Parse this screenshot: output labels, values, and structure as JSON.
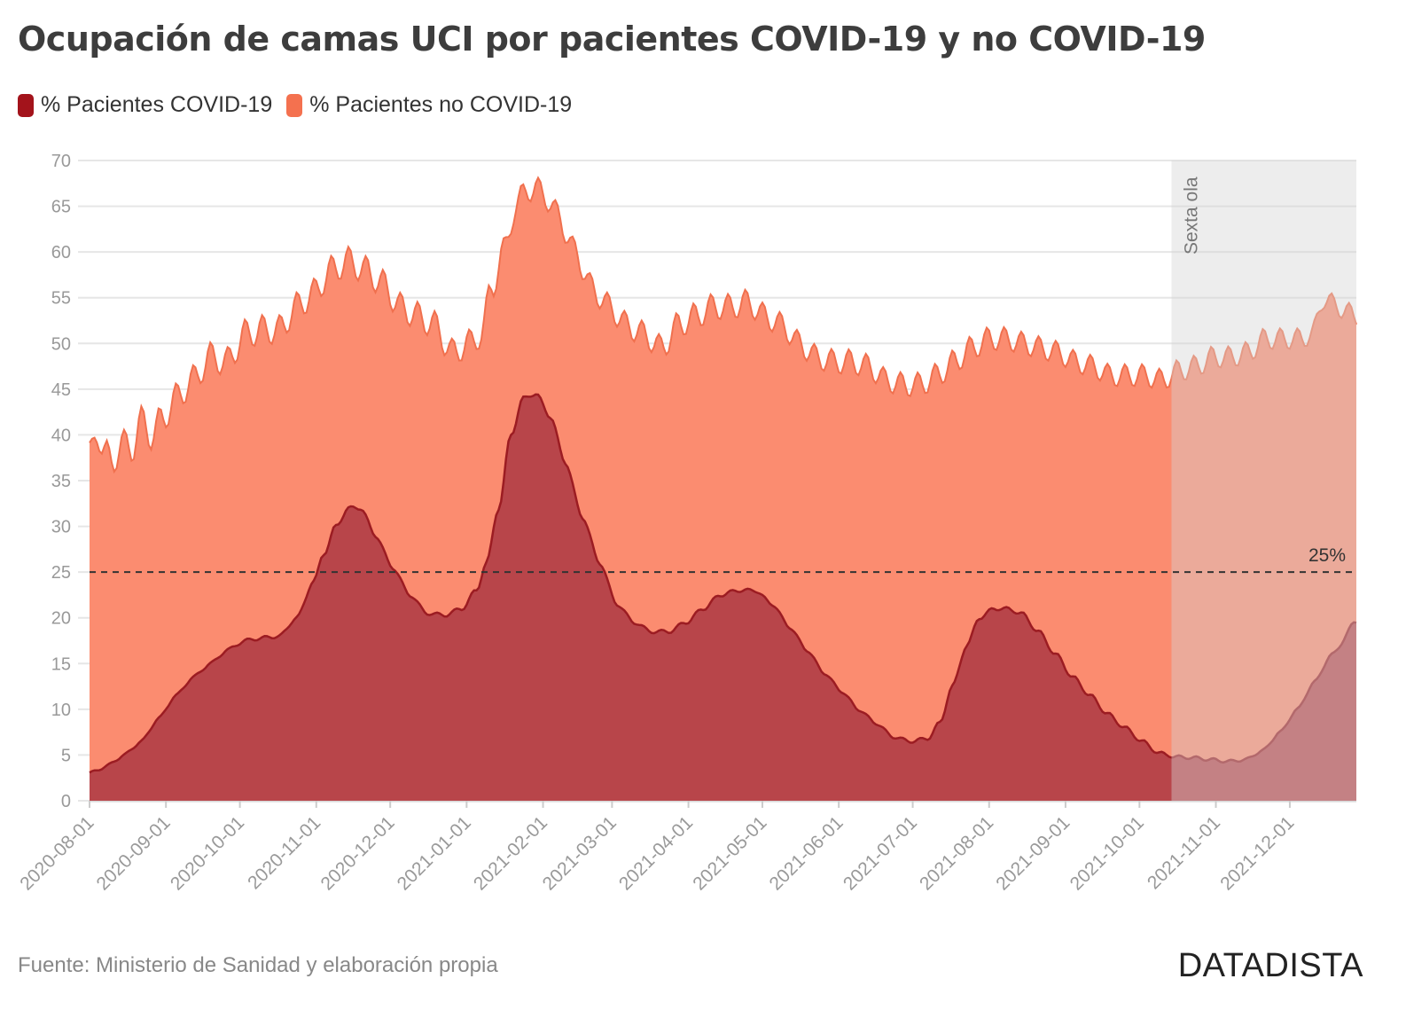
{
  "title": "Ocupación de camas UCI por pacientes COVID-19 y no COVID-19",
  "source": "Fuente: Ministerio de Sanidad y elaboración propia",
  "brand": "DATADISTA",
  "colors": {
    "covid": "#b8454a",
    "covid_line": "#9c1c22",
    "covid_swatch": "#a3131b",
    "noncovid": "#fb8c70",
    "noncovid_line": "#f0704e",
    "noncovid_swatch": "#f4714f",
    "band": "#d3d3d3",
    "grid": "#e6e6e6",
    "reference": "#333333"
  },
  "chart_data": {
    "type": "area",
    "title": "Ocupación de camas UCI por pacientes COVID-19 y no COVID-19",
    "xlabel": "",
    "ylabel": "",
    "ylim": [
      0,
      70
    ],
    "yticks": [
      0,
      5,
      10,
      15,
      20,
      25,
      30,
      35,
      40,
      45,
      50,
      55,
      60,
      65,
      70
    ],
    "xlim": [
      "2020-08-01",
      "2021-12-28"
    ],
    "xticks": [
      "2020-08-01",
      "2020-09-01",
      "2020-10-01",
      "2020-11-01",
      "2020-12-01",
      "2021-01-01",
      "2021-02-01",
      "2021-03-01",
      "2021-04-01",
      "2021-05-01",
      "2021-06-01",
      "2021-07-01",
      "2021-08-01",
      "2021-09-01",
      "2021-10-01",
      "2021-11-01",
      "2021-12-01"
    ],
    "grid": true,
    "legend_position": "top-left",
    "stacked": true,
    "series": [
      {
        "name": "% Pacientes COVID-19",
        "points": [
          [
            "2020-08-01",
            3
          ],
          [
            "2020-08-08",
            3.8
          ],
          [
            "2020-08-15",
            5
          ],
          [
            "2020-08-22",
            6.5
          ],
          [
            "2020-08-29",
            9
          ],
          [
            "2020-09-05",
            11.5
          ],
          [
            "2020-09-12",
            13.5
          ],
          [
            "2020-09-19",
            15
          ],
          [
            "2020-09-26",
            16.5
          ],
          [
            "2020-10-03",
            17.5
          ],
          [
            "2020-10-10",
            17.8
          ],
          [
            "2020-10-17",
            18
          ],
          [
            "2020-10-24",
            20
          ],
          [
            "2020-10-31",
            24
          ],
          [
            "2020-11-04",
            27
          ],
          [
            "2020-11-09",
            30
          ],
          [
            "2020-11-14",
            32
          ],
          [
            "2020-11-19",
            32
          ],
          [
            "2020-11-25",
            29
          ],
          [
            "2020-12-02",
            25.5
          ],
          [
            "2020-12-09",
            22.5
          ],
          [
            "2020-12-16",
            20.5
          ],
          [
            "2020-12-23",
            20.3
          ],
          [
            "2020-12-30",
            21
          ],
          [
            "2021-01-05",
            23
          ],
          [
            "2021-01-09",
            26
          ],
          [
            "2021-01-14",
            32
          ],
          [
            "2021-01-19",
            40
          ],
          [
            "2021-01-24",
            44
          ],
          [
            "2021-01-29",
            44.5
          ],
          [
            "2021-02-04",
            42
          ],
          [
            "2021-02-10",
            37
          ],
          [
            "2021-02-17",
            31
          ],
          [
            "2021-02-24",
            26
          ],
          [
            "2021-03-03",
            21.5
          ],
          [
            "2021-03-10",
            19.5
          ],
          [
            "2021-03-17",
            18.5
          ],
          [
            "2021-03-24",
            18.5
          ],
          [
            "2021-03-31",
            19.5
          ],
          [
            "2021-04-07",
            21
          ],
          [
            "2021-04-14",
            22.5
          ],
          [
            "2021-04-21",
            23
          ],
          [
            "2021-04-28",
            23
          ],
          [
            "2021-05-05",
            21.5
          ],
          [
            "2021-05-12",
            19
          ],
          [
            "2021-05-19",
            16.5
          ],
          [
            "2021-05-26",
            14
          ],
          [
            "2021-06-02",
            12
          ],
          [
            "2021-06-09",
            10
          ],
          [
            "2021-06-16",
            8.5
          ],
          [
            "2021-06-23",
            7
          ],
          [
            "2021-06-30",
            6.5
          ],
          [
            "2021-07-07",
            6.8
          ],
          [
            "2021-07-12",
            8.5
          ],
          [
            "2021-07-17",
            12.5
          ],
          [
            "2021-07-23",
            17
          ],
          [
            "2021-07-28",
            20
          ],
          [
            "2021-08-03",
            21
          ],
          [
            "2021-08-08",
            21
          ],
          [
            "2021-08-14",
            20.5
          ],
          [
            "2021-08-21",
            18.5
          ],
          [
            "2021-08-28",
            16
          ],
          [
            "2021-09-04",
            13.5
          ],
          [
            "2021-09-11",
            11.5
          ],
          [
            "2021-09-18",
            9.5
          ],
          [
            "2021-09-25",
            8
          ],
          [
            "2021-10-02",
            6.5
          ],
          [
            "2021-10-09",
            5.2
          ],
          [
            "2021-10-16",
            4.8
          ],
          [
            "2021-10-23",
            4.7
          ],
          [
            "2021-10-30",
            4.5
          ],
          [
            "2021-11-06",
            4.3
          ],
          [
            "2021-11-13",
            4.5
          ],
          [
            "2021-11-20",
            5.5
          ],
          [
            "2021-11-27",
            7.5
          ],
          [
            "2021-12-04",
            10
          ],
          [
            "2021-12-11",
            13
          ],
          [
            "2021-12-18",
            16
          ],
          [
            "2021-12-28",
            19.5
          ]
        ]
      },
      {
        "name": "% Pacientes no COVID-19",
        "total_points": [
          [
            "2020-08-01",
            37.5
          ],
          [
            "2020-08-04",
            40.5
          ],
          [
            "2020-08-07",
            38
          ],
          [
            "2020-08-10",
            37
          ],
          [
            "2020-08-14",
            39
          ],
          [
            "2020-08-18",
            38.5
          ],
          [
            "2020-08-22",
            41.5
          ],
          [
            "2020-08-26",
            40
          ],
          [
            "2020-08-30",
            41.5
          ],
          [
            "2020-09-05",
            44
          ],
          [
            "2020-09-12",
            46
          ],
          [
            "2020-09-19",
            48.5
          ],
          [
            "2020-09-26",
            48
          ],
          [
            "2020-10-03",
            51
          ],
          [
            "2020-10-10",
            51.5
          ],
          [
            "2020-10-17",
            51.5
          ],
          [
            "2020-10-24",
            54
          ],
          [
            "2020-10-31",
            55.5
          ],
          [
            "2020-11-07",
            58
          ],
          [
            "2020-11-14",
            59
          ],
          [
            "2020-11-21",
            58
          ],
          [
            "2020-11-28",
            56.5
          ],
          [
            "2020-12-05",
            54
          ],
          [
            "2020-12-12",
            53
          ],
          [
            "2020-12-19",
            52
          ],
          [
            "2020-12-26",
            49
          ],
          [
            "2021-01-02",
            50
          ],
          [
            "2021-01-07",
            51
          ],
          [
            "2021-01-11",
            56
          ],
          [
            "2021-01-16",
            60
          ],
          [
            "2021-01-21",
            65
          ],
          [
            "2021-01-26",
            67
          ],
          [
            "2021-02-01",
            66.5
          ],
          [
            "2021-02-07",
            64
          ],
          [
            "2021-02-14",
            60
          ],
          [
            "2021-02-21",
            56
          ],
          [
            "2021-02-28",
            54
          ],
          [
            "2021-03-07",
            52
          ],
          [
            "2021-03-14",
            51
          ],
          [
            "2021-03-21",
            49.5
          ],
          [
            "2021-03-28",
            52
          ],
          [
            "2021-04-04",
            53
          ],
          [
            "2021-04-11",
            54
          ],
          [
            "2021-04-18",
            54
          ],
          [
            "2021-04-25",
            54.5
          ],
          [
            "2021-05-02",
            53
          ],
          [
            "2021-05-09",
            52
          ],
          [
            "2021-05-16",
            50
          ],
          [
            "2021-05-23",
            48.5
          ],
          [
            "2021-05-30",
            48
          ],
          [
            "2021-06-06",
            48
          ],
          [
            "2021-06-13",
            47.5
          ],
          [
            "2021-06-20",
            46
          ],
          [
            "2021-06-27",
            45.5
          ],
          [
            "2021-07-04",
            45.5
          ],
          [
            "2021-07-11",
            46.5
          ],
          [
            "2021-07-18",
            48
          ],
          [
            "2021-07-25",
            49.5
          ],
          [
            "2021-08-01",
            50.5
          ],
          [
            "2021-08-08",
            50.5
          ],
          [
            "2021-08-15",
            50
          ],
          [
            "2021-08-22",
            49.5
          ],
          [
            "2021-08-29",
            49
          ],
          [
            "2021-09-05",
            48
          ],
          [
            "2021-09-12",
            47.5
          ],
          [
            "2021-09-19",
            46.5
          ],
          [
            "2021-09-26",
            46.5
          ],
          [
            "2021-10-03",
            46.5
          ],
          [
            "2021-10-10",
            46
          ],
          [
            "2021-10-17",
            47
          ],
          [
            "2021-10-24",
            47.5
          ],
          [
            "2021-10-31",
            48.5
          ],
          [
            "2021-11-07",
            48.5
          ],
          [
            "2021-11-14",
            49
          ],
          [
            "2021-11-21",
            50.5
          ],
          [
            "2021-11-28",
            50.5
          ],
          [
            "2021-12-05",
            50.5
          ],
          [
            "2021-12-10",
            51
          ],
          [
            "2021-12-15",
            55
          ],
          [
            "2021-12-20",
            54
          ],
          [
            "2021-12-28",
            53
          ]
        ]
      }
    ],
    "annotations": [
      {
        "type": "hline",
        "y": 25,
        "label": "25%"
      },
      {
        "type": "band",
        "x_start": "2021-10-14",
        "x_end": "2021-12-28",
        "label": "Sexta ola"
      }
    ]
  }
}
